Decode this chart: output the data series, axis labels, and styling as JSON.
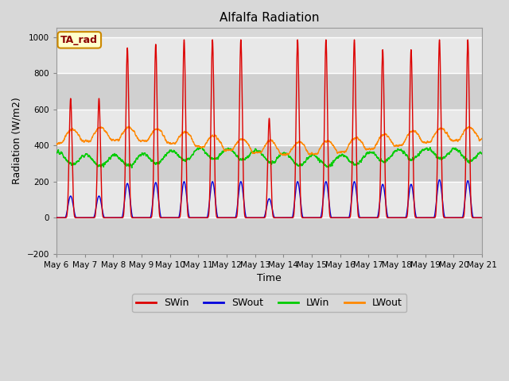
{
  "title": "Alfalfa Radiation",
  "ylabel": "Radiation (W/m2)",
  "xlabel": "Time",
  "ylim": [
    -200,
    1050
  ],
  "yticks": [
    -200,
    0,
    200,
    400,
    600,
    800,
    1000
  ],
  "x_tick_labels": [
    "May 6",
    "May 7",
    "May 8",
    "May 9",
    "May 10",
    "May 11",
    "May 12",
    "May 13",
    "May 14",
    "May 15",
    "May 16",
    "May 17",
    "May 18",
    "May 19",
    "May 20",
    "May 21"
  ],
  "series_colors": {
    "SWin": "#dd0000",
    "SWout": "#0000dd",
    "LWin": "#00cc00",
    "LWout": "#ff8800"
  },
  "annotation_text": "TA_rad",
  "annotation_box_color": "#ffffcc",
  "annotation_box_edge": "#cc8800",
  "bg_color": "#d8d8d8",
  "plot_bg_color": "#d8d8d8",
  "grid_color": "#ffffff",
  "n_days": 15,
  "points_per_day": 288,
  "SWin_peaks": [
    660,
    660,
    940,
    960,
    985,
    985,
    985,
    550,
    985,
    985,
    985,
    930,
    930,
    985,
    985
  ],
  "SWout_peaks": [
    120,
    120,
    190,
    195,
    200,
    200,
    200,
    105,
    200,
    200,
    200,
    185,
    185,
    210,
    205
  ],
  "LWin_base": 335,
  "LWout_base": 390
}
